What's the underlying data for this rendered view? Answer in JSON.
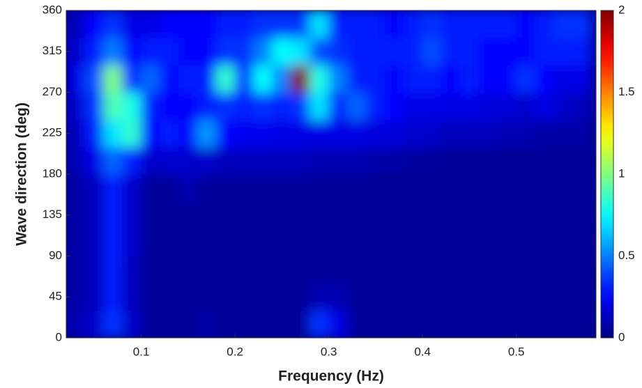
{
  "chart_data": {
    "type": "heatmap",
    "xlabel": "Frequency (Hz)",
    "ylabel": "Wave direction (deg)",
    "xlim": [
      0.02,
      0.585
    ],
    "ylim": [
      0,
      360
    ],
    "xticks": [
      0.1,
      0.2,
      0.3,
      0.4,
      0.5
    ],
    "yticks": [
      0,
      45,
      90,
      135,
      180,
      225,
      270,
      315,
      360
    ],
    "colormap": "jet",
    "clim": [
      0,
      2
    ],
    "cticks": [
      0,
      0.5,
      1,
      1.5,
      2
    ],
    "x": [
      0.03,
      0.05,
      0.07,
      0.09,
      0.11,
      0.13,
      0.15,
      0.17,
      0.19,
      0.21,
      0.23,
      0.25,
      0.27,
      0.29,
      0.31,
      0.33,
      0.35,
      0.37,
      0.39,
      0.41,
      0.43,
      0.45,
      0.47,
      0.49,
      0.51,
      0.53,
      0.55,
      0.57
    ],
    "y": [
      15,
      45,
      75,
      105,
      135,
      165,
      195,
      225,
      255,
      285,
      315,
      345
    ],
    "z": [
      [
        0.1,
        0.15,
        0.35,
        0.15,
        0.05,
        0.05,
        0.05,
        0.08,
        0.05,
        0.05,
        0.05,
        0.05,
        0.05,
        0.35,
        0.2,
        0.05,
        0.05,
        0.05,
        0.05,
        0.05,
        0.05,
        0.05,
        0.05,
        0.05,
        0.05,
        0.05,
        0.05,
        0.05
      ],
      [
        0.08,
        0.12,
        0.3,
        0.12,
        0.05,
        0.05,
        0.05,
        0.05,
        0.05,
        0.05,
        0.05,
        0.05,
        0.05,
        0.1,
        0.1,
        0.05,
        0.05,
        0.05,
        0.05,
        0.05,
        0.05,
        0.05,
        0.05,
        0.05,
        0.05,
        0.05,
        0.05,
        0.05
      ],
      [
        0.08,
        0.12,
        0.3,
        0.12,
        0.05,
        0.05,
        0.05,
        0.05,
        0.05,
        0.05,
        0.05,
        0.05,
        0.05,
        0.05,
        0.05,
        0.05,
        0.05,
        0.05,
        0.05,
        0.05,
        0.05,
        0.05,
        0.05,
        0.05,
        0.05,
        0.05,
        0.05,
        0.05
      ],
      [
        0.08,
        0.12,
        0.3,
        0.15,
        0.05,
        0.05,
        0.05,
        0.05,
        0.05,
        0.05,
        0.05,
        0.05,
        0.05,
        0.05,
        0.05,
        0.05,
        0.05,
        0.05,
        0.05,
        0.05,
        0.05,
        0.05,
        0.05,
        0.05,
        0.05,
        0.05,
        0.05,
        0.05
      ],
      [
        0.08,
        0.12,
        0.3,
        0.15,
        0.05,
        0.05,
        0.05,
        0.05,
        0.05,
        0.05,
        0.05,
        0.05,
        0.05,
        0.05,
        0.05,
        0.05,
        0.05,
        0.05,
        0.05,
        0.05,
        0.05,
        0.05,
        0.05,
        0.05,
        0.05,
        0.05,
        0.05,
        0.05
      ],
      [
        0.08,
        0.12,
        0.3,
        0.15,
        0.05,
        0.05,
        0.1,
        0.05,
        0.05,
        0.05,
        0.05,
        0.05,
        0.05,
        0.05,
        0.05,
        0.05,
        0.05,
        0.05,
        0.05,
        0.05,
        0.05,
        0.05,
        0.05,
        0.05,
        0.05,
        0.05,
        0.05,
        0.05
      ],
      [
        0.1,
        0.2,
        0.45,
        0.3,
        0.15,
        0.15,
        0.15,
        0.15,
        0.12,
        0.12,
        0.12,
        0.12,
        0.12,
        0.1,
        0.1,
        0.1,
        0.08,
        0.08,
        0.06,
        0.06,
        0.05,
        0.05,
        0.05,
        0.05,
        0.05,
        0.05,
        0.05,
        0.05
      ],
      [
        0.12,
        0.3,
        0.7,
        0.85,
        0.25,
        0.3,
        0.25,
        0.55,
        0.25,
        0.22,
        0.22,
        0.2,
        0.2,
        0.2,
        0.2,
        0.2,
        0.18,
        0.18,
        0.15,
        0.15,
        0.12,
        0.12,
        0.12,
        0.1,
        0.1,
        0.08,
        0.08,
        0.08
      ],
      [
        0.15,
        0.35,
        0.9,
        0.8,
        0.3,
        0.25,
        0.25,
        0.3,
        0.35,
        0.3,
        0.35,
        0.3,
        0.35,
        0.7,
        0.3,
        0.45,
        0.3,
        0.25,
        0.2,
        0.2,
        0.2,
        0.2,
        0.18,
        0.18,
        0.15,
        0.2,
        0.15,
        0.12
      ],
      [
        0.2,
        0.4,
        1.0,
        0.35,
        0.45,
        0.25,
        0.3,
        0.3,
        0.85,
        0.35,
        0.75,
        0.5,
        2.0,
        0.8,
        0.5,
        0.3,
        0.3,
        0.25,
        0.3,
        0.3,
        0.25,
        0.3,
        0.25,
        0.25,
        0.35,
        0.25,
        0.2,
        0.2
      ],
      [
        0.15,
        0.3,
        0.5,
        0.25,
        0.3,
        0.3,
        0.25,
        0.25,
        0.35,
        0.35,
        0.5,
        0.75,
        0.7,
        0.4,
        0.35,
        0.3,
        0.3,
        0.3,
        0.3,
        0.4,
        0.3,
        0.3,
        0.25,
        0.25,
        0.25,
        0.3,
        0.3,
        0.3
      ],
      [
        0.12,
        0.25,
        0.35,
        0.2,
        0.2,
        0.25,
        0.25,
        0.25,
        0.3,
        0.3,
        0.35,
        0.35,
        0.35,
        0.7,
        0.3,
        0.3,
        0.3,
        0.25,
        0.3,
        0.35,
        0.3,
        0.3,
        0.3,
        0.3,
        0.25,
        0.3,
        0.35,
        0.35
      ]
    ]
  }
}
